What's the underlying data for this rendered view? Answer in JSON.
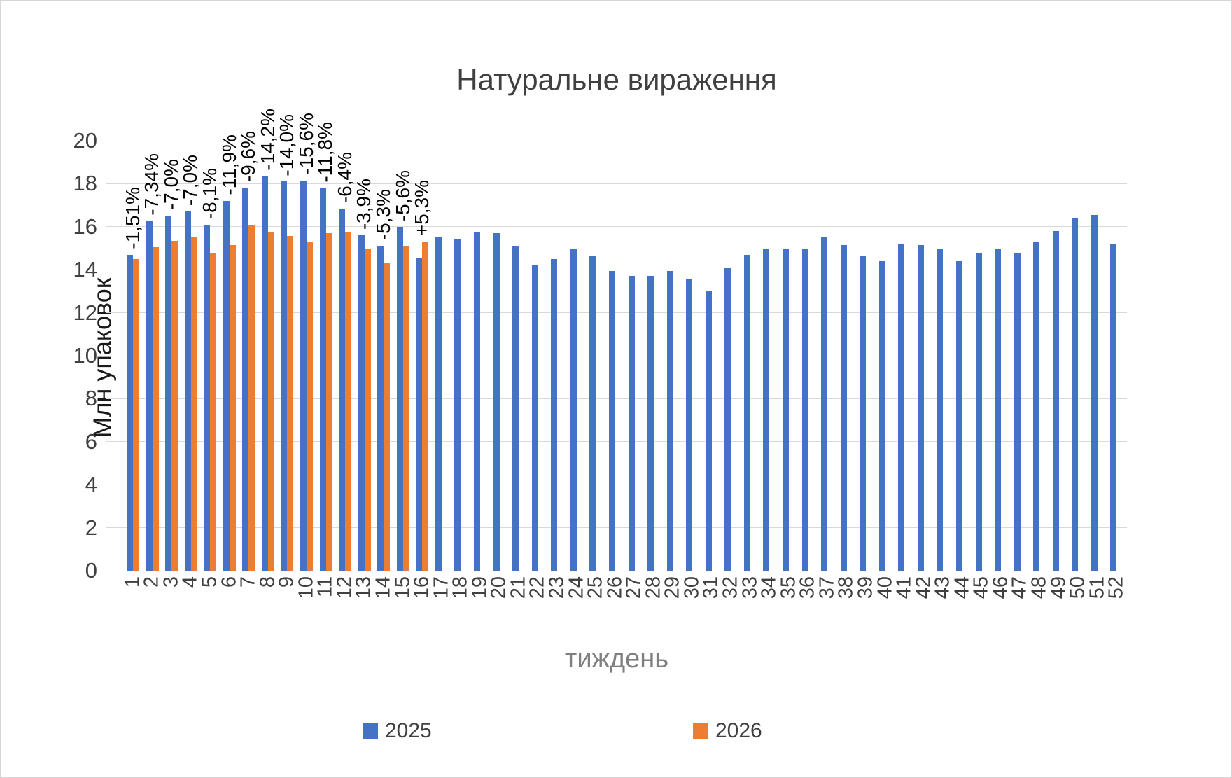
{
  "chart_data": {
    "type": "bar",
    "title": "Натуральне вираження",
    "xlabel": "тиждень",
    "ylabel": "Млн упаковок",
    "ylim": [
      0,
      20
    ],
    "ytick_step": 2,
    "grid": true,
    "legend_position": "bottom",
    "categories": [
      1,
      2,
      3,
      4,
      5,
      6,
      7,
      8,
      9,
      10,
      11,
      12,
      13,
      14,
      15,
      16,
      17,
      18,
      19,
      20,
      21,
      22,
      23,
      24,
      25,
      26,
      27,
      28,
      29,
      30,
      31,
      32,
      33,
      34,
      35,
      36,
      37,
      38,
      39,
      40,
      41,
      42,
      43,
      44,
      45,
      46,
      47,
      48,
      49,
      50,
      51,
      52
    ],
    "series": [
      {
        "name": "2025",
        "color": "#4472C4",
        "values": [
          14.7,
          16.25,
          16.5,
          16.7,
          16.1,
          17.2,
          17.8,
          18.35,
          18.1,
          18.15,
          17.8,
          16.85,
          15.6,
          15.1,
          16.0,
          14.55,
          15.5,
          15.4,
          15.75,
          15.7,
          15.1,
          14.25,
          14.5,
          14.95,
          14.65,
          13.95,
          13.7,
          13.7,
          13.95,
          13.55,
          13.0,
          14.1,
          14.7,
          14.95,
          14.95,
          14.95,
          15.5,
          15.15,
          14.65,
          14.4,
          15.2,
          15.15,
          15.0,
          14.4,
          14.75,
          14.95,
          14.8,
          15.3,
          15.8,
          16.4,
          16.55,
          15.2
        ]
      },
      {
        "name": "2026",
        "color": "#ED7D31",
        "values": [
          14.48,
          15.06,
          15.35,
          15.53,
          14.8,
          15.15,
          16.09,
          15.74,
          15.57,
          15.32,
          15.7,
          15.77,
          15.0,
          14.3,
          15.1,
          15.32,
          null,
          null,
          null,
          null,
          null,
          null,
          null,
          null,
          null,
          null,
          null,
          null,
          null,
          null,
          null,
          null,
          null,
          null,
          null,
          null,
          null,
          null,
          null,
          null,
          null,
          null,
          null,
          null,
          null,
          null,
          null,
          null,
          null,
          null,
          null,
          null
        ]
      }
    ],
    "data_labels": {
      "attached_series": "2026",
      "values": [
        "-1,51%",
        "-7,34%",
        "-7,0%",
        "-7,0%",
        "-8,1%",
        "-11,9%",
        "-9,6%",
        "-14,2%",
        "-14,0%",
        "-15,6%",
        "-11,8%",
        "-6,4%",
        "-3,9%",
        "-5,3%",
        "-5,6%",
        "+5,3%"
      ]
    }
  }
}
